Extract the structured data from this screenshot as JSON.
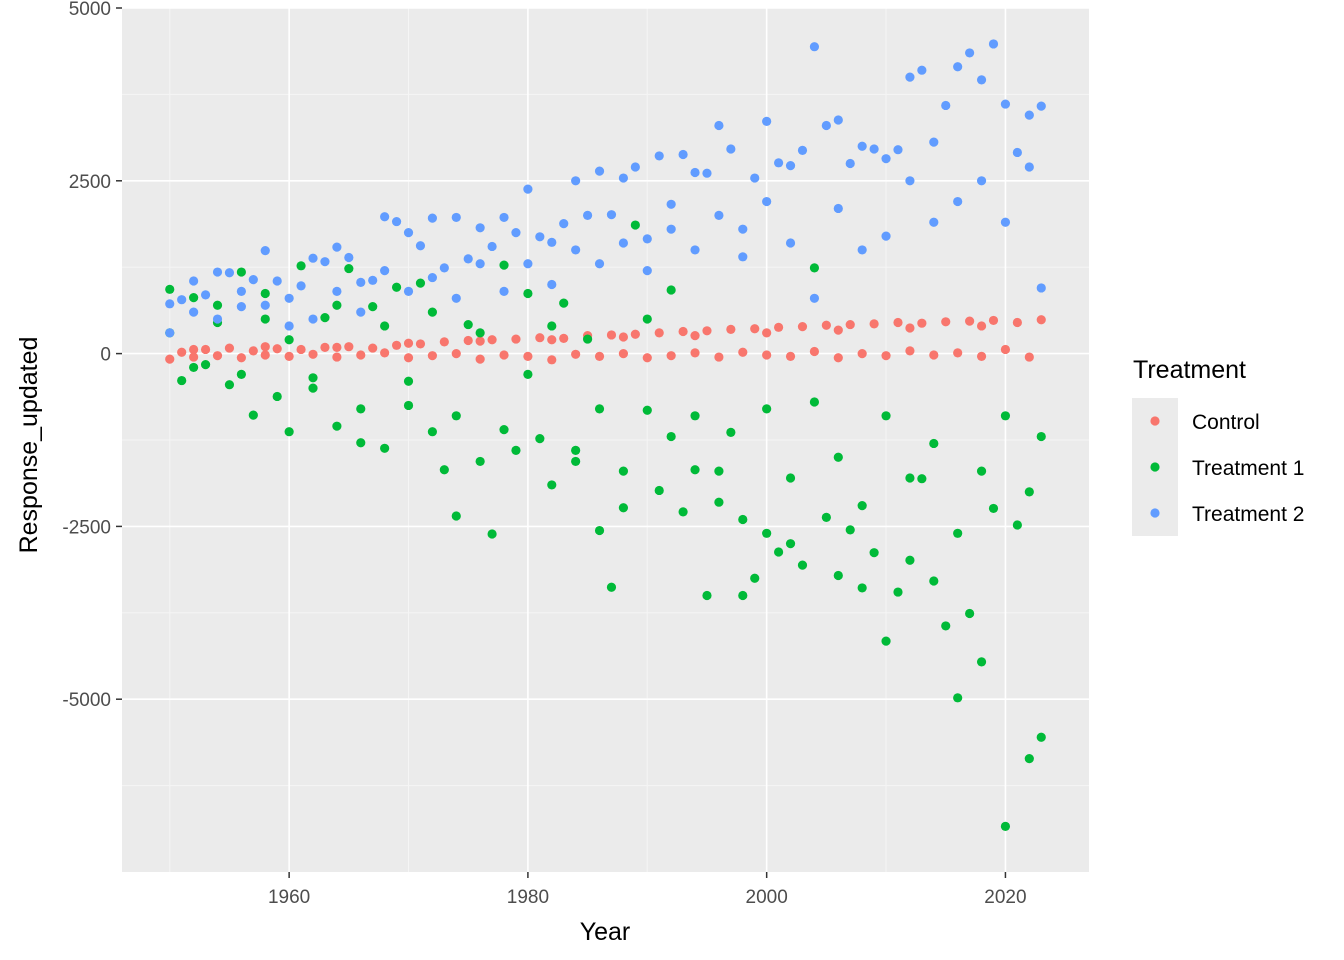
{
  "chart_data": {
    "type": "scatter",
    "xlabel": "Year",
    "ylabel": "Response_updated",
    "xlim": [
      1946,
      2027
    ],
    "ylim": [
      -7500,
      5000
    ],
    "x_ticks": [
      1960,
      1980,
      2000,
      2020
    ],
    "x_tick_labels": [
      "1960",
      "1980",
      "2000",
      "2020"
    ],
    "y_ticks": [
      -5000,
      -2500,
      0,
      2500,
      5000
    ],
    "y_tick_labels": [
      "-5000",
      "-2500",
      "0",
      "2500",
      "5000"
    ],
    "grid": true,
    "background": "#ebebeb",
    "legend": {
      "title": "Treatment",
      "position": "right"
    },
    "series": [
      {
        "name": "Control",
        "color": "#f8766d",
        "points": [
          [
            1950,
            -80
          ],
          [
            1951,
            20
          ],
          [
            1952,
            -50
          ],
          [
            1953,
            60
          ],
          [
            1954,
            -30
          ],
          [
            1955,
            80
          ],
          [
            1956,
            -60
          ],
          [
            1957,
            40
          ],
          [
            1958,
            -20
          ],
          [
            1959,
            70
          ],
          [
            1960,
            -40
          ],
          [
            1961,
            60
          ],
          [
            1962,
            -10
          ],
          [
            1963,
            90
          ],
          [
            1964,
            -50
          ],
          [
            1965,
            100
          ],
          [
            1966,
            -20
          ],
          [
            1967,
            80
          ],
          [
            1968,
            10
          ],
          [
            1969,
            120
          ],
          [
            1970,
            -60
          ],
          [
            1971,
            140
          ],
          [
            1972,
            -30
          ],
          [
            1973,
            170
          ],
          [
            1974,
            0
          ],
          [
            1975,
            190
          ],
          [
            1976,
            -80
          ],
          [
            1977,
            200
          ],
          [
            1978,
            -20
          ],
          [
            1979,
            210
          ],
          [
            1980,
            -40
          ],
          [
            1981,
            230
          ],
          [
            1982,
            -90
          ],
          [
            1983,
            220
          ],
          [
            1984,
            -10
          ],
          [
            1985,
            260
          ],
          [
            1986,
            -40
          ],
          [
            1987,
            270
          ],
          [
            1988,
            0
          ],
          [
            1989,
            280
          ],
          [
            1990,
            -60
          ],
          [
            1991,
            300
          ],
          [
            1992,
            -30
          ],
          [
            1993,
            320
          ],
          [
            1994,
            10
          ],
          [
            1995,
            330
          ],
          [
            1996,
            -50
          ],
          [
            1997,
            350
          ],
          [
            1998,
            20
          ],
          [
            1999,
            360
          ],
          [
            2000,
            -20
          ],
          [
            2001,
            380
          ],
          [
            2002,
            -40
          ],
          [
            2003,
            390
          ],
          [
            2004,
            30
          ],
          [
            2005,
            410
          ],
          [
            2006,
            -60
          ],
          [
            2007,
            420
          ],
          [
            2008,
            0
          ],
          [
            2009,
            430
          ],
          [
            2010,
            -30
          ],
          [
            2011,
            450
          ],
          [
            2012,
            40
          ],
          [
            2013,
            440
          ],
          [
            2014,
            -20
          ],
          [
            2015,
            460
          ],
          [
            2016,
            10
          ],
          [
            2017,
            470
          ],
          [
            2018,
            -40
          ],
          [
            2019,
            480
          ],
          [
            2020,
            60
          ],
          [
            2021,
            450
          ],
          [
            2022,
            -50
          ],
          [
            2023,
            490
          ],
          [
            1952,
            60
          ],
          [
            1958,
            100
          ],
          [
            1964,
            90
          ],
          [
            1970,
            150
          ],
          [
            1976,
            180
          ],
          [
            1982,
            200
          ],
          [
            1988,
            240
          ],
          [
            1994,
            260
          ],
          [
            2000,
            300
          ],
          [
            2006,
            340
          ],
          [
            2012,
            370
          ],
          [
            2018,
            400
          ]
        ]
      },
      {
        "name": "Treatment 1",
        "color": "#00ba38",
        "points": [
          [
            1950,
            930
          ],
          [
            1951,
            -390
          ],
          [
            1952,
            810
          ],
          [
            1953,
            -160
          ],
          [
            1954,
            700
          ],
          [
            1955,
            -450
          ],
          [
            1956,
            1180
          ],
          [
            1957,
            -890
          ],
          [
            1958,
            870
          ],
          [
            1959,
            -620
          ],
          [
            1960,
            -1130
          ],
          [
            1961,
            1270
          ],
          [
            1962,
            -350
          ],
          [
            1963,
            520
          ],
          [
            1964,
            -1050
          ],
          [
            1965,
            1230
          ],
          [
            1966,
            -1290
          ],
          [
            1967,
            680
          ],
          [
            1968,
            -1370
          ],
          [
            1969,
            960
          ],
          [
            1970,
            -750
          ],
          [
            1971,
            1020
          ],
          [
            1972,
            -1130
          ],
          [
            1973,
            -1680
          ],
          [
            1974,
            -2350
          ],
          [
            1975,
            420
          ],
          [
            1976,
            -1560
          ],
          [
            1977,
            -2610
          ],
          [
            1978,
            1280
          ],
          [
            1979,
            -1400
          ],
          [
            1980,
            870
          ],
          [
            1981,
            -1230
          ],
          [
            1982,
            -1900
          ],
          [
            1983,
            730
          ],
          [
            1984,
            -1560
          ],
          [
            1985,
            210
          ],
          [
            1986,
            -2560
          ],
          [
            1987,
            -3380
          ],
          [
            1988,
            -2230
          ],
          [
            1989,
            1860
          ],
          [
            1990,
            -820
          ],
          [
            1991,
            -1980
          ],
          [
            1992,
            920
          ],
          [
            1993,
            -2290
          ],
          [
            1994,
            -1680
          ],
          [
            1995,
            -3500
          ],
          [
            1996,
            -2150
          ],
          [
            1997,
            -1140
          ],
          [
            1998,
            -3500
          ],
          [
            1999,
            -3250
          ],
          [
            2000,
            -2600
          ],
          [
            2001,
            -2870
          ],
          [
            2002,
            -2750
          ],
          [
            2003,
            -3060
          ],
          [
            2004,
            1240
          ],
          [
            2005,
            -2370
          ],
          [
            2006,
            -3210
          ],
          [
            2007,
            -2550
          ],
          [
            2008,
            -3390
          ],
          [
            2009,
            -2880
          ],
          [
            2010,
            -4160
          ],
          [
            2011,
            -3450
          ],
          [
            2012,
            -2990
          ],
          [
            2013,
            -1810
          ],
          [
            2014,
            -3290
          ],
          [
            2015,
            -3940
          ],
          [
            2016,
            -4980
          ],
          [
            2017,
            -3760
          ],
          [
            2018,
            -4460
          ],
          [
            2019,
            -2240
          ],
          [
            2020,
            -6840
          ],
          [
            2021,
            -2480
          ],
          [
            2022,
            -5860
          ],
          [
            2023,
            -5550
          ],
          [
            1950,
            300
          ],
          [
            1952,
            -200
          ],
          [
            1954,
            450
          ],
          [
            1956,
            -300
          ],
          [
            1958,
            500
          ],
          [
            1960,
            200
          ],
          [
            1962,
            -500
          ],
          [
            1964,
            700
          ],
          [
            1966,
            -800
          ],
          [
            1968,
            400
          ],
          [
            1970,
            -400
          ],
          [
            1972,
            600
          ],
          [
            1974,
            -900
          ],
          [
            1976,
            300
          ],
          [
            1978,
            -1100
          ],
          [
            1980,
            -300
          ],
          [
            1982,
            400
          ],
          [
            1984,
            -1400
          ],
          [
            1986,
            -800
          ],
          [
            1988,
            -1700
          ],
          [
            1990,
            500
          ],
          [
            1992,
            -1200
          ],
          [
            1994,
            -900
          ],
          [
            1996,
            -1700
          ],
          [
            1998,
            -2400
          ],
          [
            2000,
            -800
          ],
          [
            2002,
            -1800
          ],
          [
            2004,
            -700
          ],
          [
            2006,
            -1500
          ],
          [
            2008,
            -2200
          ],
          [
            2010,
            -900
          ],
          [
            2012,
            -1800
          ],
          [
            2014,
            -1300
          ],
          [
            2016,
            -2600
          ],
          [
            2018,
            -1700
          ],
          [
            2020,
            -900
          ],
          [
            2022,
            -2000
          ],
          [
            2023,
            -1200
          ]
        ]
      },
      {
        "name": "Treatment 2",
        "color": "#619cff",
        "points": [
          [
            1950,
            720
          ],
          [
            1951,
            780
          ],
          [
            1952,
            1050
          ],
          [
            1953,
            850
          ],
          [
            1954,
            1180
          ],
          [
            1955,
            1170
          ],
          [
            1956,
            680
          ],
          [
            1957,
            1070
          ],
          [
            1958,
            1490
          ],
          [
            1959,
            1050
          ],
          [
            1960,
            400
          ],
          [
            1961,
            980
          ],
          [
            1962,
            1380
          ],
          [
            1963,
            1330
          ],
          [
            1964,
            1540
          ],
          [
            1965,
            1390
          ],
          [
            1966,
            1030
          ],
          [
            1967,
            1060
          ],
          [
            1968,
            1980
          ],
          [
            1969,
            1910
          ],
          [
            1970,
            1750
          ],
          [
            1971,
            1560
          ],
          [
            1972,
            1960
          ],
          [
            1973,
            1240
          ],
          [
            1974,
            1970
          ],
          [
            1975,
            1370
          ],
          [
            1976,
            1820
          ],
          [
            1977,
            1550
          ],
          [
            1978,
            1970
          ],
          [
            1979,
            1750
          ],
          [
            1980,
            2380
          ],
          [
            1981,
            1690
          ],
          [
            1982,
            1610
          ],
          [
            1983,
            1880
          ],
          [
            1984,
            2500
          ],
          [
            1985,
            2000
          ],
          [
            1986,
            2640
          ],
          [
            1987,
            2010
          ],
          [
            1988,
            2540
          ],
          [
            1989,
            2700
          ],
          [
            1990,
            1660
          ],
          [
            1991,
            2860
          ],
          [
            1992,
            2160
          ],
          [
            1993,
            2880
          ],
          [
            1994,
            2620
          ],
          [
            1995,
            2610
          ],
          [
            1996,
            3300
          ],
          [
            1997,
            2960
          ],
          [
            1998,
            1800
          ],
          [
            1999,
            2540
          ],
          [
            2000,
            3360
          ],
          [
            2001,
            2760
          ],
          [
            2002,
            2720
          ],
          [
            2003,
            2940
          ],
          [
            2004,
            4440
          ],
          [
            2005,
            3300
          ],
          [
            2006,
            3380
          ],
          [
            2007,
            2750
          ],
          [
            2008,
            3000
          ],
          [
            2009,
            2960
          ],
          [
            2010,
            2820
          ],
          [
            2011,
            2950
          ],
          [
            2012,
            4000
          ],
          [
            2013,
            4100
          ],
          [
            2014,
            3060
          ],
          [
            2015,
            3590
          ],
          [
            2016,
            4150
          ],
          [
            2017,
            4350
          ],
          [
            2018,
            3960
          ],
          [
            2019,
            4480
          ],
          [
            2020,
            3610
          ],
          [
            2021,
            2910
          ],
          [
            2022,
            3450
          ],
          [
            2023,
            3580
          ],
          [
            1950,
            300
          ],
          [
            1952,
            600
          ],
          [
            1954,
            500
          ],
          [
            1956,
            900
          ],
          [
            1958,
            700
          ],
          [
            1960,
            800
          ],
          [
            1962,
            500
          ],
          [
            1964,
            900
          ],
          [
            1966,
            600
          ],
          [
            1968,
            1200
          ],
          [
            1970,
            900
          ],
          [
            1972,
            1100
          ],
          [
            1974,
            800
          ],
          [
            1976,
            1300
          ],
          [
            1978,
            900
          ],
          [
            1980,
            1300
          ],
          [
            1982,
            1000
          ],
          [
            1984,
            1500
          ],
          [
            1986,
            1300
          ],
          [
            1988,
            1600
          ],
          [
            1990,
            1200
          ],
          [
            1992,
            1800
          ],
          [
            1994,
            1500
          ],
          [
            1996,
            2000
          ],
          [
            1998,
            1400
          ],
          [
            2000,
            2200
          ],
          [
            2002,
            1600
          ],
          [
            2004,
            800
          ],
          [
            2006,
            2100
          ],
          [
            2008,
            1500
          ],
          [
            2010,
            1700
          ],
          [
            2012,
            2500
          ],
          [
            2014,
            1900
          ],
          [
            2016,
            2200
          ],
          [
            2018,
            2500
          ],
          [
            2020,
            1900
          ],
          [
            2022,
            2700
          ],
          [
            2023,
            950
          ]
        ]
      }
    ]
  }
}
